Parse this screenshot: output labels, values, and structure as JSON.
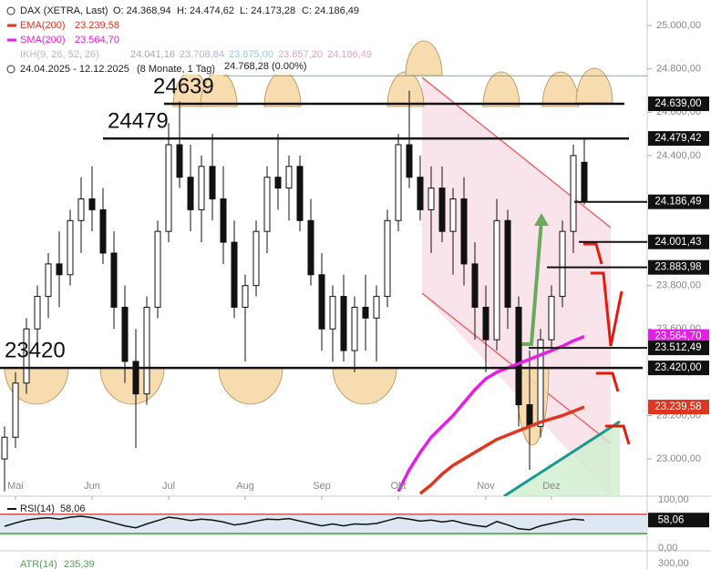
{
  "chart_data": {
    "type": "candlestick",
    "title": "DAX (XETRA, Last)",
    "ohlc_labels": [
      "O: 24.368,94",
      "H: 24.474,62",
      "L: 24.173,28",
      "C: 24.186,49"
    ],
    "ikh": {
      "name": "IKH(9, 26, 52, 26)",
      "values": [
        {
          "label": "24.041,16",
          "color": "#aaaaaa"
        },
        {
          "label": "23.708,84",
          "color": "#b9b2dc"
        },
        {
          "label": "23.875,00",
          "color": "#9cc8ee"
        },
        {
          "label": "23.857,20",
          "color": "#e4a6b8"
        },
        {
          "label": "24.186,49",
          "color": "#e4a6c8"
        }
      ]
    },
    "range": "24.04.2025 - 12.12.2025",
    "range_note": "(8 Monate, 1 Tag)",
    "categories": [
      null,
      "Mai",
      null,
      null,
      null,
      null,
      null,
      null,
      "Jun",
      null,
      null,
      null,
      null,
      null,
      null,
      "Jul",
      null,
      null,
      null,
      null,
      null,
      null,
      "Aug",
      null,
      null,
      null,
      null,
      null,
      null,
      "Sep",
      null,
      null,
      null,
      null,
      null,
      null,
      "Okt",
      null,
      null,
      null,
      null,
      null,
      null,
      null,
      "Nov",
      null,
      null,
      null,
      null,
      null,
      "Dez",
      null,
      null,
      null
    ],
    "open": [
      23000,
      23100,
      23350,
      23600,
      23750,
      23900,
      23850,
      24100,
      24200,
      24150,
      23950,
      23700,
      23450,
      23300,
      23700,
      24050,
      24450,
      24300,
      24150,
      24350,
      24200,
      24000,
      23700,
      23800,
      24050,
      24300,
      24250,
      24350,
      24100,
      23850,
      23600,
      23750,
      23500,
      23700,
      23650,
      23750,
      24100,
      24450,
      24300,
      24150,
      24250,
      24050,
      24200,
      23900,
      23700,
      23550,
      24100,
      23700,
      23250,
      23150,
      23550,
      23750,
      24050,
      24368.94
    ],
    "high": [
      23150,
      23400,
      23650,
      23800,
      23950,
      24050,
      24150,
      24300,
      24350,
      24250,
      24050,
      23800,
      23600,
      23750,
      24100,
      24550,
      24650,
      24450,
      24400,
      24500,
      24350,
      24100,
      23850,
      24100,
      24350,
      24500,
      24400,
      24400,
      24200,
      23950,
      23800,
      23850,
      23750,
      23850,
      23800,
      24150,
      24500,
      24700,
      24400,
      24350,
      24350,
      24250,
      24300,
      24000,
      23800,
      24200,
      24150,
      23750,
      23500,
      23600,
      23800,
      24100,
      24450,
      24474.62
    ],
    "low": [
      22850,
      23050,
      23300,
      23500,
      23650,
      23700,
      23800,
      23950,
      24050,
      23900,
      23600,
      23350,
      23050,
      23250,
      23650,
      24000,
      24250,
      24050,
      24000,
      24100,
      23900,
      23650,
      23450,
      23750,
      23950,
      24150,
      24100,
      24050,
      23800,
      23500,
      23450,
      23450,
      23400,
      23500,
      23450,
      23700,
      24050,
      24250,
      24100,
      23950,
      24000,
      23850,
      23800,
      23550,
      23400,
      23500,
      23600,
      23150,
      22950,
      23100,
      23500,
      23700,
      23950,
      24173.28
    ],
    "close": [
      23100,
      23350,
      23600,
      23750,
      23900,
      23850,
      24100,
      24200,
      24150,
      23950,
      23700,
      23450,
      23300,
      23700,
      24050,
      24450,
      24300,
      24150,
      24350,
      24200,
      24000,
      23700,
      23800,
      24050,
      24300,
      24250,
      24350,
      24100,
      23850,
      23600,
      23750,
      23500,
      23700,
      23650,
      23750,
      24100,
      24450,
      24300,
      24150,
      24250,
      24050,
      24200,
      23900,
      23700,
      23550,
      24100,
      23700,
      23250,
      23150,
      23550,
      23750,
      24050,
      24400,
      24186.49
    ],
    "series": [
      {
        "name": "EMA(200)",
        "color": "#e0351f",
        "last_label": "23.239,58",
        "values": [
          null,
          null,
          null,
          null,
          null,
          null,
          null,
          null,
          null,
          null,
          null,
          null,
          null,
          null,
          null,
          null,
          null,
          null,
          null,
          null,
          null,
          null,
          null,
          null,
          null,
          null,
          null,
          null,
          null,
          null,
          null,
          null,
          null,
          null,
          null,
          null,
          null,
          null,
          22840,
          22880,
          22930,
          22970,
          23000,
          23030,
          23060,
          23090,
          23110,
          23130,
          23150,
          23170,
          23185,
          23200,
          23220,
          23239.58
        ]
      },
      {
        "name": "SMA(200)",
        "color": "#e51ee5",
        "last_label": "23.564,70",
        "values": [
          null,
          null,
          null,
          null,
          null,
          null,
          null,
          null,
          null,
          null,
          null,
          null,
          null,
          null,
          null,
          null,
          null,
          null,
          null,
          null,
          null,
          null,
          null,
          null,
          null,
          null,
          null,
          null,
          null,
          null,
          null,
          null,
          null,
          null,
          null,
          null,
          22850,
          22950,
          23030,
          23100,
          23150,
          23200,
          23260,
          23320,
          23370,
          23400,
          23420,
          23440,
          23460,
          23480,
          23500,
          23520,
          23545,
          23564.7
        ]
      }
    ],
    "ylim": [
      22828,
      25118
    ],
    "yticks": [
      {
        "value": 23000,
        "label": "23.000,00"
      },
      {
        "value": 23200,
        "label": "23.200,00"
      },
      {
        "value": 23400,
        "label": "23.400,00"
      },
      {
        "value": 23600,
        "label": "23.600,00"
      },
      {
        "value": 23800,
        "label": "23.800,00"
      },
      {
        "value": 24000,
        "label": "24.000,00"
      },
      {
        "value": 24200,
        "label": "24.200,00"
      },
      {
        "value": 24400,
        "label": "24.400,00"
      },
      {
        "value": 24600,
        "label": "24.600,00"
      },
      {
        "value": 24800,
        "label": "24.800,00"
      },
      {
        "value": 25000,
        "label": "25.000,00"
      }
    ],
    "reference_line": {
      "value": 24768.28,
      "label": "24.768,28 (0.00%)"
    },
    "levels": [
      {
        "value": 24639,
        "label": "24.639,00"
      },
      {
        "value": 24479,
        "label": "24.479,42"
      },
      {
        "value": 23420,
        "label": "23.420,00"
      }
    ],
    "price_tags": [
      {
        "value": 24186.49,
        "label": "24.186,49",
        "color": "#111111"
      },
      {
        "value": 24001.43,
        "label": "24.001,43",
        "color": "#111111"
      },
      {
        "value": 23883.98,
        "label": "23.883,98",
        "color": "#111111"
      },
      {
        "value": 23564.7,
        "label": "23.564,70",
        "color": "#e51ee5"
      },
      {
        "value": 23512.49,
        "label": "23.512,49",
        "color": "#111111"
      },
      {
        "value": 23239.58,
        "label": "23.239,58",
        "color": "#e0351f"
      }
    ],
    "rsi": {
      "name": "RSI(14)",
      "last_label": "58,06",
      "last": 58.06,
      "ylim": [
        0,
        100
      ],
      "yticks": [
        {
          "value": 100,
          "label": "100,00"
        },
        {
          "value": 0,
          "label": "0,00"
        }
      ],
      "upper": 70,
      "lower": 30,
      "values": [
        45,
        52,
        58,
        61,
        63,
        60,
        64,
        66,
        63,
        58,
        52,
        46,
        42,
        50,
        57,
        64,
        61,
        57,
        60,
        58,
        54,
        48,
        51,
        56,
        60,
        59,
        61,
        56,
        51,
        46,
        50,
        46,
        50,
        49,
        51,
        57,
        63,
        60,
        56,
        58,
        54,
        57,
        51,
        47,
        44,
        55,
        48,
        40,
        38,
        46,
        51,
        56,
        60,
        58.06
      ]
    },
    "atr": {
      "name": "ATR(14)",
      "last_label": "235,39",
      "ytick": {
        "value": 300,
        "label": "300,00"
      }
    }
  }
}
